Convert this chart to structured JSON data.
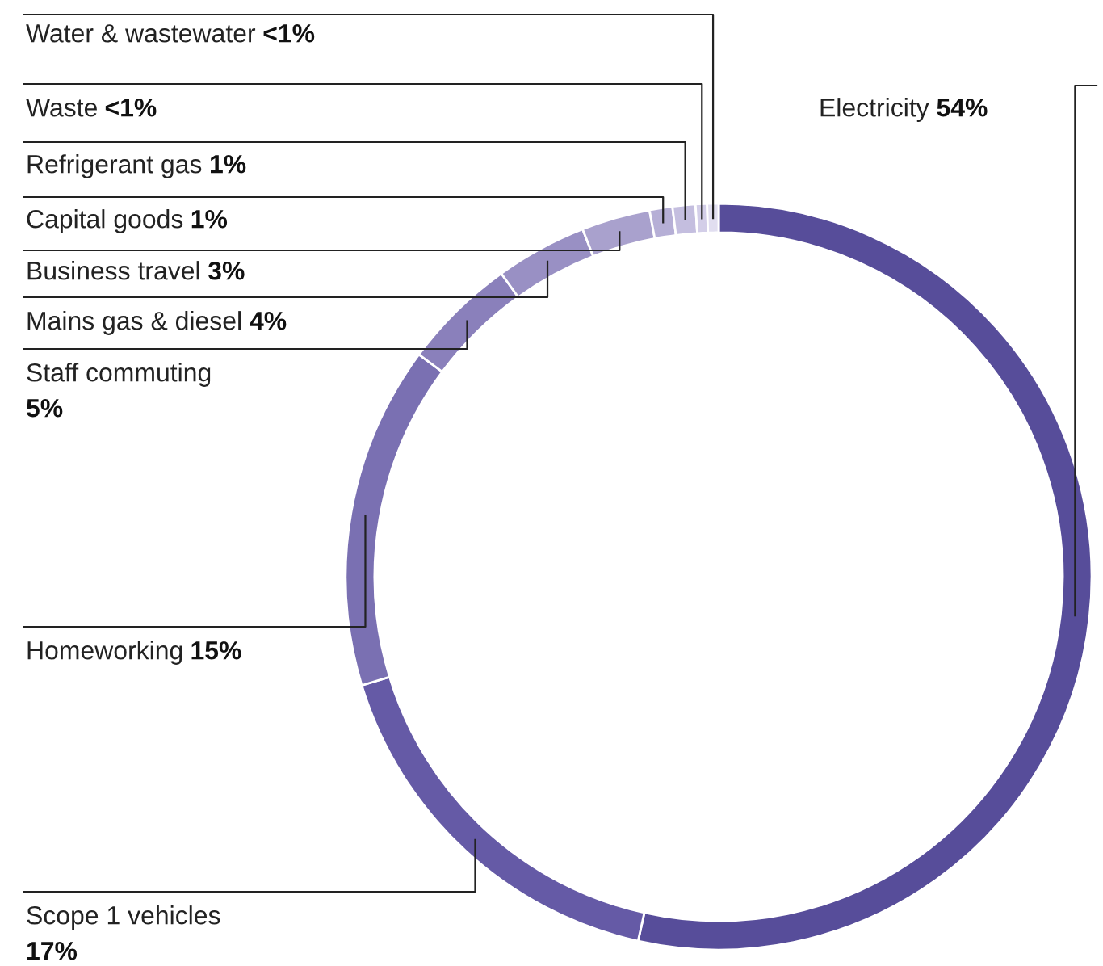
{
  "chart_data": {
    "type": "donut",
    "categories": [
      "Electricity",
      "Scope 1 vehicles",
      "Homeworking",
      "Staff commuting",
      "Mains gas & diesel",
      "Business travel",
      "Capital goods",
      "Refrigerant gas",
      "Waste",
      "Water & wastewater"
    ],
    "values": [
      54,
      17,
      15,
      5,
      4,
      3,
      1,
      1,
      0.5,
      0.5
    ],
    "value_labels": [
      "54%",
      "17%",
      "15%",
      "5%",
      "4%",
      "3%",
      "1%",
      "1%",
      "<1%",
      "<1%"
    ],
    "colors": [
      "#574d9a",
      "#655aa6",
      "#7a70b2",
      "#8a80bb",
      "#9990c4",
      "#a9a1cd",
      "#b6afd6",
      "#c4bedf",
      "#d3cee8",
      "#e1def0"
    ]
  }
}
